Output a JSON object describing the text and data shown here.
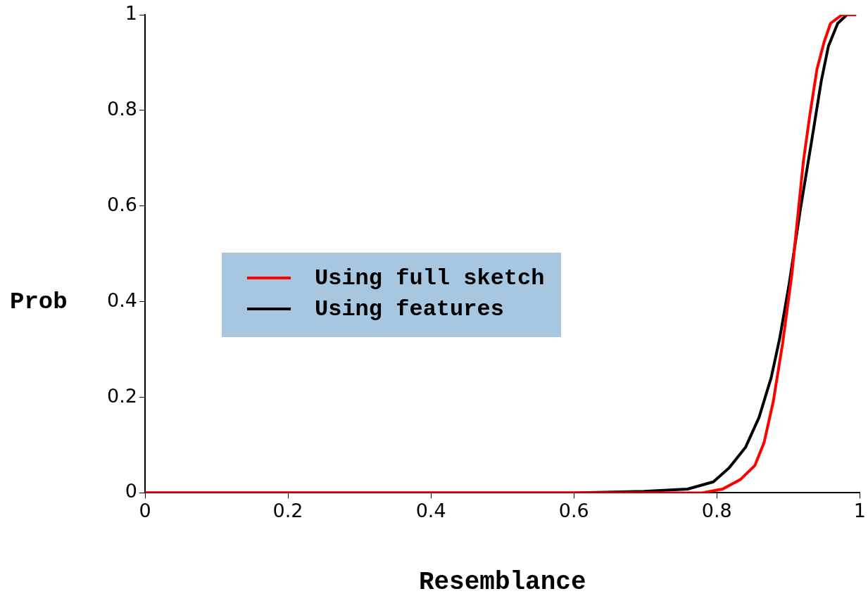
{
  "chart_data": {
    "type": "line",
    "xlabel": "Resemblance",
    "ylabel": "Prob",
    "xlim": [
      0,
      1
    ],
    "ylim": [
      0,
      1
    ],
    "xticks": [
      0,
      0.2,
      0.4,
      0.6,
      0.8,
      1
    ],
    "yticks": [
      0,
      0.2,
      0.4,
      0.6,
      0.8,
      1
    ],
    "grid": false,
    "legend": "left",
    "marker": "none",
    "line_style": "solid",
    "series": [
      {
        "name": "Using full sketch",
        "color": "#ff0000",
        "x": [
          0,
          0.6,
          0.779,
          0.808,
          0.833,
          0.853,
          0.866,
          0.879,
          0.892,
          0.905,
          0.909,
          0.921,
          0.93,
          0.94,
          0.95,
          0.959,
          0.975,
          0.995
        ],
        "values": [
          0,
          0,
          0,
          0.008,
          0.028,
          0.057,
          0.105,
          0.192,
          0.313,
          0.458,
          0.518,
          0.693,
          0.79,
          0.886,
          0.943,
          0.982,
          1,
          1
        ]
      },
      {
        "name": "Using features",
        "color": "#000000",
        "x": [
          0,
          0.6,
          0.698,
          0.759,
          0.795,
          0.817,
          0.84,
          0.859,
          0.876,
          0.888,
          0.901,
          0.917,
          0.933,
          0.946,
          0.956,
          0.969,
          0.982
        ],
        "values": [
          0,
          0,
          0.003,
          0.008,
          0.023,
          0.052,
          0.095,
          0.158,
          0.241,
          0.324,
          0.436,
          0.595,
          0.74,
          0.861,
          0.934,
          0.982,
          1
        ]
      }
    ]
  }
}
